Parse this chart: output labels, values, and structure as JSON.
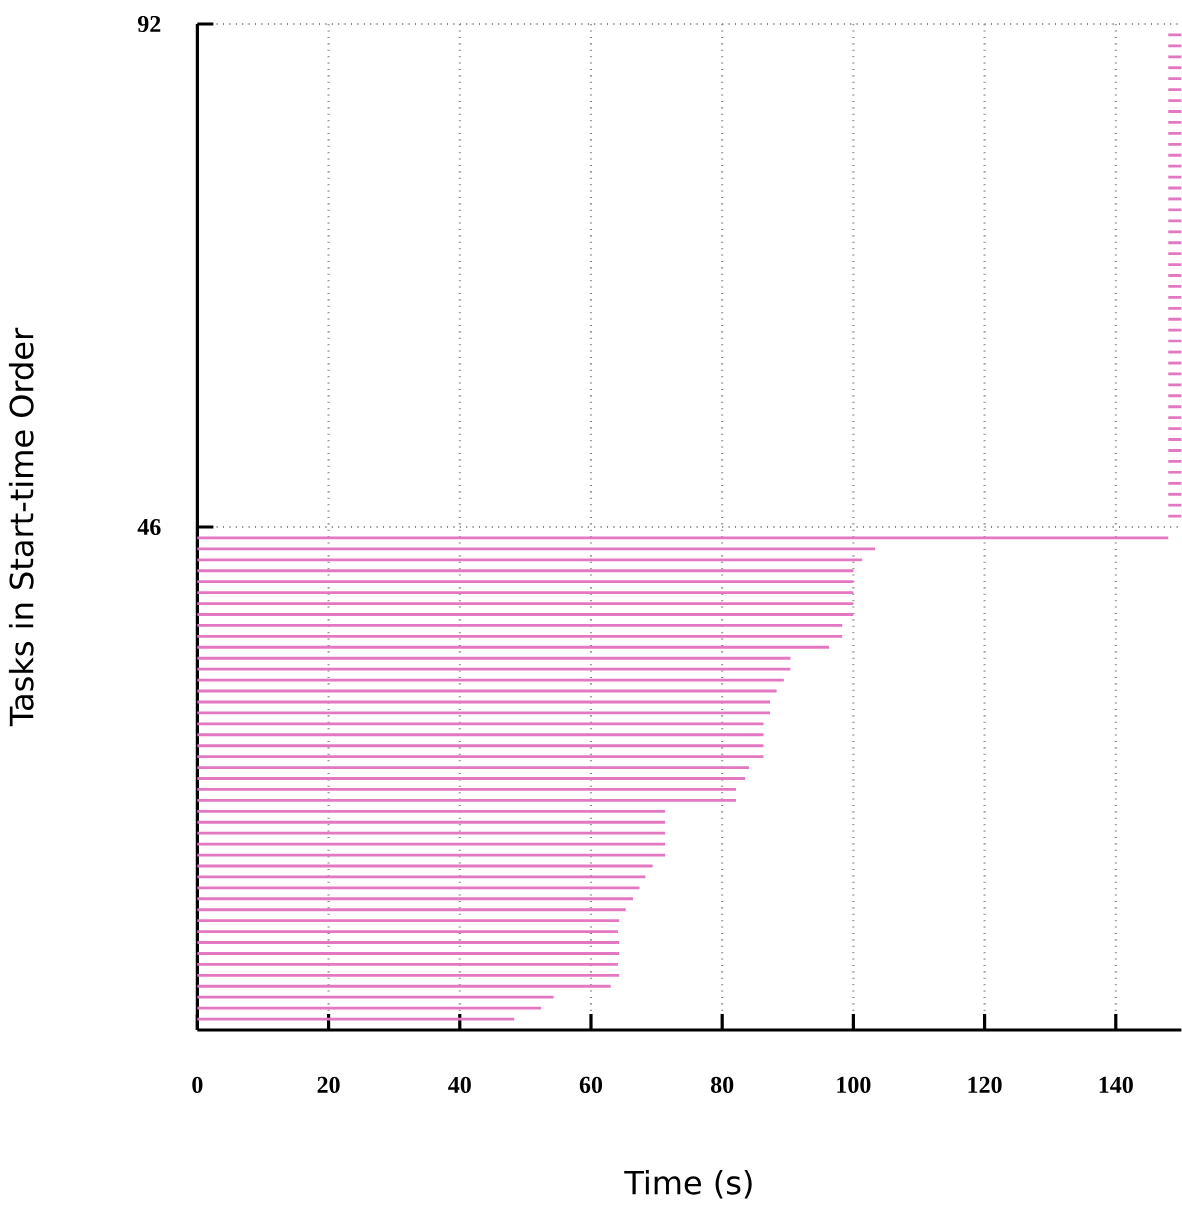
{
  "chart_data": {
    "type": "bar",
    "orientation": "horizontal",
    "xlabel": "Time (s)",
    "ylabel": "Tasks in Start-time Order",
    "x": [
      1,
      2,
      3,
      4,
      5,
      6,
      7,
      8,
      9,
      10,
      11,
      12,
      13,
      14,
      15,
      16,
      17,
      18,
      19,
      20,
      21,
      22,
      23,
      24,
      25,
      26,
      27,
      28,
      29,
      30,
      31,
      32,
      33,
      34,
      35,
      36,
      37,
      38,
      39,
      40,
      41,
      42,
      43,
      44,
      45,
      47,
      48,
      49,
      50,
      51,
      52,
      53,
      54,
      55,
      56,
      57,
      58,
      59,
      60,
      61,
      62,
      63,
      64,
      65,
      66,
      67,
      68,
      69,
      70,
      71,
      72,
      73,
      74,
      75,
      76,
      77,
      78,
      79,
      80,
      81,
      82,
      83,
      84,
      85,
      86,
      87,
      88,
      89,
      90,
      91
    ],
    "values": [
      48.3,
      52.4,
      54.3,
      63,
      64.3,
      64.1,
      64.3,
      64.3,
      64.1,
      64.3,
      65.3,
      66.4,
      67.4,
      68.3,
      69.4,
      71.3,
      71.3,
      71.3,
      71.3,
      71.3,
      82.1,
      82.1,
      83.5,
      84.1,
      86.3,
      86.3,
      86.3,
      86.3,
      87.3,
      87.3,
      88.3,
      89.4,
      90.4,
      90.4,
      96.3,
      98.3,
      98.3,
      100,
      100,
      100,
      100,
      100,
      101.3,
      103.3,
      148,
      2,
      2,
      2,
      2,
      2,
      2,
      2,
      2,
      2,
      2,
      2,
      2,
      2,
      2,
      2,
      2,
      2,
      2,
      2,
      2,
      2,
      2,
      2,
      2,
      2,
      2,
      2,
      2,
      2,
      2,
      2,
      2,
      2,
      2,
      2,
      2,
      2,
      2,
      2,
      2,
      2,
      2,
      2,
      2,
      2
    ],
    "base": [
      0,
      0,
      0,
      0,
      0,
      0,
      0,
      0,
      0,
      0,
      0,
      0,
      0,
      0,
      0,
      0,
      0,
      0,
      0,
      0,
      0,
      0,
      0,
      0,
      0,
      0,
      0,
      0,
      0,
      0,
      0,
      0,
      0,
      0,
      0,
      0,
      0,
      0,
      0,
      0,
      0,
      0,
      0,
      0,
      0,
      148,
      148,
      148,
      148,
      148,
      148,
      148,
      148,
      148,
      148,
      148,
      148,
      148,
      148,
      148,
      148,
      148,
      148,
      148,
      148,
      148,
      148,
      148,
      148,
      148,
      148,
      148,
      148,
      148,
      148,
      148,
      148,
      148,
      148,
      148,
      148,
      148,
      148,
      148,
      148,
      148,
      148,
      148,
      148,
      148
    ],
    "color": "#e377c2",
    "xlim": [
      0,
      150
    ],
    "xticks": [
      0,
      20,
      40,
      60,
      80,
      100,
      120,
      140
    ],
    "ylim": [
      0,
      92
    ],
    "yticks": [
      46,
      92
    ],
    "grid": true
  }
}
